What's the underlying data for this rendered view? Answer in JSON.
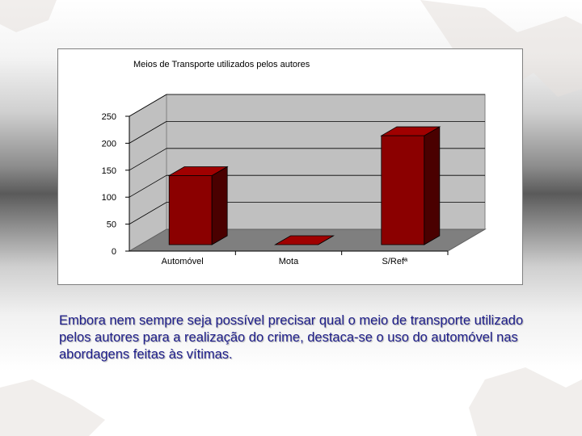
{
  "chart_data": {
    "type": "bar",
    "title": "Meios de Transporte utilizados pelos autores",
    "categories": [
      "Automóvel",
      "Mota",
      "S/Refª"
    ],
    "values": [
      128,
      0,
      202
    ],
    "ylim": [
      0,
      250
    ],
    "yticks": [
      "0",
      "50",
      "100",
      "150",
      "200",
      "250"
    ],
    "grid": true,
    "legend": "none",
    "xlabel": "",
    "ylabel": "",
    "colors": {
      "bar": "#8b0000",
      "bar_side": "#4a0000",
      "bar_top": "#a00000",
      "plot_wall": "#c0c0c0",
      "plot_floor": "#7f7f7f"
    }
  },
  "caption": "Embora nem sempre seja possível precisar qual o meio de transporte utilizado pelos autores para a realização do crime, destaca-se  o uso do automóvel  nas abordagens feitas às vítimas."
}
